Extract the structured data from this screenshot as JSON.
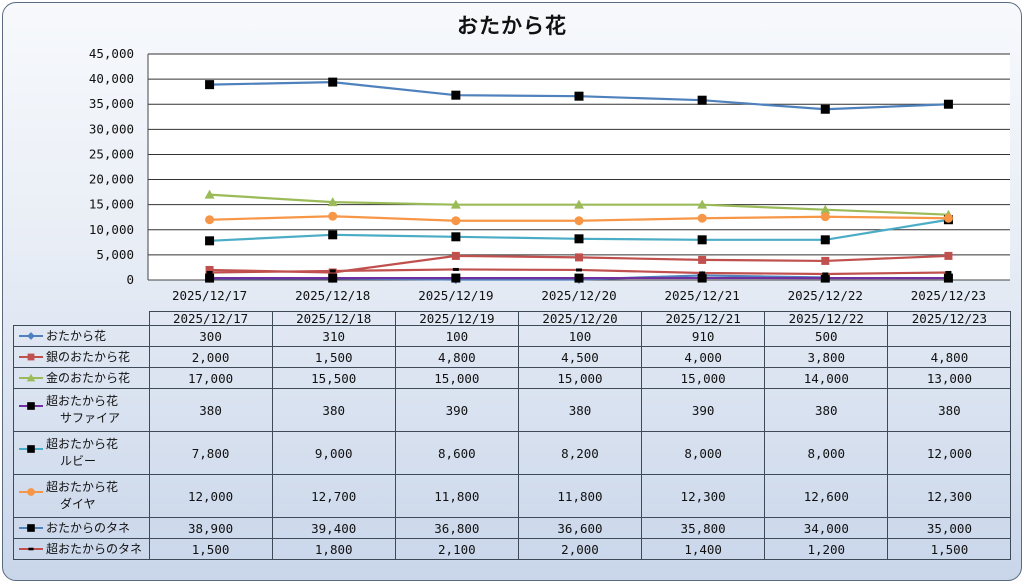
{
  "chart_data": {
    "type": "line",
    "title": "おたから花",
    "categories": [
      "2025/12/17",
      "2025/12/18",
      "2025/12/19",
      "2025/12/20",
      "2025/12/21",
      "2025/12/22",
      "2025/12/23"
    ],
    "ylim": [
      0,
      45000
    ],
    "yticks": [
      0,
      5000,
      10000,
      15000,
      20000,
      25000,
      30000,
      35000,
      40000,
      45000
    ],
    "ytick_labels": [
      "0",
      "5,000",
      "10,000",
      "15,000",
      "20,000",
      "25,000",
      "30,000",
      "35,000",
      "40,000",
      "45,000"
    ],
    "grid": true,
    "legend": "data-table",
    "series": [
      {
        "name": "おたから花",
        "name_line1": "おたから花",
        "name_line2": "",
        "color": "#4f81bd",
        "marker": "diamond",
        "values": [
          300,
          310,
          100,
          100,
          910,
          500,
          null
        ],
        "labels": [
          "300",
          "310",
          "100",
          "100",
          "910",
          "500",
          ""
        ]
      },
      {
        "name": "銀のおたから花",
        "name_line1": "銀のおたから花",
        "name_line2": "",
        "color": "#c0504d",
        "marker": "square",
        "values": [
          2000,
          1500,
          4800,
          4500,
          4000,
          3800,
          4800
        ],
        "labels": [
          "2,000",
          "1,500",
          "4,800",
          "4,500",
          "4,000",
          "3,800",
          "4,800"
        ]
      },
      {
        "name": "金のおたから花",
        "name_line1": "金のおたから花",
        "name_line2": "",
        "color": "#9bbb59",
        "marker": "triangle",
        "values": [
          17000,
          15500,
          15000,
          15000,
          15000,
          14000,
          13000
        ],
        "labels": [
          "17,000",
          "15,500",
          "15,000",
          "15,000",
          "15,000",
          "14,000",
          "13,000"
        ]
      },
      {
        "name": "超おたから花 サファイア",
        "name_line1": "超おたから花",
        "name_line2": "サファイア",
        "color": "#7030a0",
        "marker": "blacksquare",
        "values": [
          380,
          380,
          390,
          380,
          390,
          380,
          380
        ],
        "labels": [
          "380",
          "380",
          "390",
          "380",
          "390",
          "380",
          "380"
        ]
      },
      {
        "name": "超おたから花 ルビー",
        "name_line1": "超おたから花",
        "name_line2": "ルビー",
        "color": "#4bacc6",
        "marker": "blacksquare",
        "values": [
          7800,
          9000,
          8600,
          8200,
          8000,
          8000,
          12000
        ],
        "labels": [
          "7,800",
          "9,000",
          "8,600",
          "8,200",
          "8,000",
          "8,000",
          "12,000"
        ]
      },
      {
        "name": "超おたから花 ダイヤ",
        "name_line1": "超おたから花",
        "name_line2": "ダイヤ",
        "color": "#f79646",
        "marker": "circle",
        "values": [
          12000,
          12700,
          11800,
          11800,
          12300,
          12600,
          12300
        ],
        "labels": [
          "12,000",
          "12,700",
          "11,800",
          "11,800",
          "12,300",
          "12,600",
          "12,300"
        ]
      },
      {
        "name": "おたからのタネ",
        "name_line1": "おたからのタネ",
        "name_line2": "",
        "color": "#4f81bd",
        "marker": "blacksquare",
        "values": [
          38900,
          39400,
          36800,
          36600,
          35800,
          34000,
          35000
        ],
        "labels": [
          "38,900",
          "39,400",
          "36,800",
          "36,600",
          "35,800",
          "34,000",
          "35,000"
        ]
      },
      {
        "name": "超おたからのタネ",
        "name_line1": "超おたからのタネ",
        "name_line2": "",
        "color": "#c0504d",
        "marker": "dash",
        "values": [
          1500,
          1800,
          2100,
          2000,
          1400,
          1200,
          1500
        ],
        "labels": [
          "1,500",
          "1,800",
          "2,100",
          "2,000",
          "1,400",
          "1,200",
          "1,500"
        ]
      }
    ]
  }
}
